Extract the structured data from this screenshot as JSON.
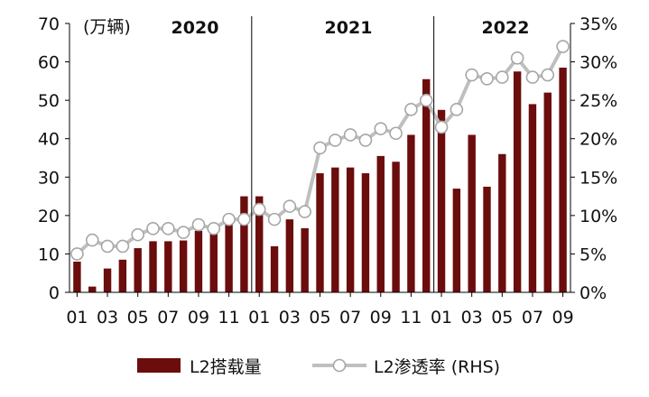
{
  "chart_data": {
    "type": "bar+line",
    "unit_label": "(万辆)",
    "year_labels": [
      "2020",
      "2021",
      "2022"
    ],
    "x_tick_labels": [
      "01",
      "03",
      "05",
      "07",
      "09",
      "11",
      "01",
      "03",
      "05",
      "07",
      "09",
      "11",
      "01",
      "03",
      "05",
      "07",
      "09"
    ],
    "categories": [
      "2020-01",
      "2020-02",
      "2020-03",
      "2020-04",
      "2020-05",
      "2020-06",
      "2020-07",
      "2020-08",
      "2020-09",
      "2020-10",
      "2020-11",
      "2020-12",
      "2021-01",
      "2021-02",
      "2021-03",
      "2021-04",
      "2021-05",
      "2021-06",
      "2021-07",
      "2021-08",
      "2021-09",
      "2021-10",
      "2021-11",
      "2021-12",
      "2022-01",
      "2022-02",
      "2022-03",
      "2022-04",
      "2022-05",
      "2022-06",
      "2022-07",
      "2022-08",
      "2022-09"
    ],
    "series": [
      {
        "name": "L2搭载量",
        "type": "bar",
        "axis": "left",
        "color": "#6b0d0d",
        "values": [
          8.0,
          1.5,
          6.2,
          8.5,
          11.5,
          13.3,
          13.3,
          13.5,
          16.0,
          16.5,
          18.0,
          25.0,
          25.0,
          12.0,
          19.0,
          16.7,
          31.0,
          32.5,
          32.5,
          31.0,
          35.5,
          34.0,
          41.0,
          55.5,
          47.5,
          27.0,
          41.0,
          27.5,
          36.0,
          57.5,
          49.0,
          52.0,
          58.5
        ]
      },
      {
        "name": "L2渗透率 (RHS)",
        "type": "line",
        "axis": "right",
        "color": "#bfbfbf",
        "values": [
          5.0,
          6.8,
          6.0,
          6.0,
          7.5,
          8.3,
          8.3,
          7.8,
          8.8,
          8.3,
          9.5,
          9.5,
          10.8,
          9.5,
          11.2,
          10.5,
          18.8,
          19.8,
          20.5,
          19.8,
          21.3,
          20.7,
          23.8,
          25.0,
          21.5,
          23.8,
          28.3,
          27.8,
          28.0,
          30.5,
          28.0,
          28.3,
          32.0
        ]
      }
    ],
    "y_left": {
      "min": 0,
      "max": 70,
      "ticks": [
        "0",
        "10",
        "20",
        "30",
        "40",
        "50",
        "60",
        "70"
      ]
    },
    "y_right": {
      "min": 0,
      "max": 35,
      "ticks": [
        "0%",
        "5%",
        "10%",
        "15%",
        "20%",
        "25%",
        "30%",
        "35%"
      ]
    },
    "legend": [
      {
        "label": "L2搭载量",
        "type": "bar",
        "color": "#6b0d0d"
      },
      {
        "label": "L2渗透率 (RHS)",
        "type": "line",
        "color": "#bfbfbf"
      }
    ],
    "legend_position": "bottom-center",
    "grid": false
  }
}
